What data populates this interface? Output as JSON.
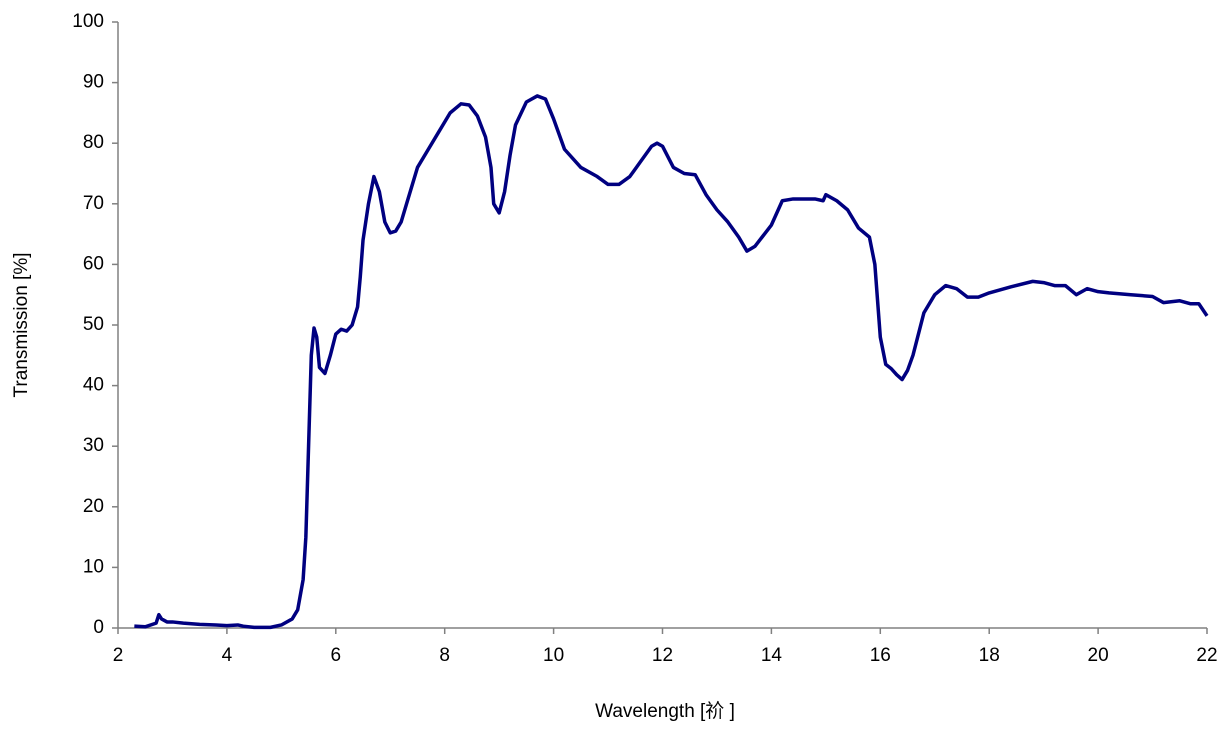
{
  "chart_data": {
    "type": "line",
    "x_label": "Wavelength [祄 ]",
    "y_label": "Transmission [%]",
    "x": [
      2.3,
      2.5,
      2.7,
      2.75,
      2.8,
      2.9,
      3.0,
      3.2,
      3.5,
      3.8,
      4.0,
      4.2,
      4.3,
      4.5,
      4.8,
      5.0,
      5.2,
      5.3,
      5.4,
      5.45,
      5.5,
      5.55,
      5.6,
      5.65,
      5.7,
      5.8,
      5.9,
      6.0,
      6.1,
      6.2,
      6.3,
      6.4,
      6.45,
      6.5,
      6.6,
      6.7,
      6.8,
      6.9,
      7.0,
      7.1,
      7.2,
      7.3,
      7.5,
      7.7,
      7.9,
      8.1,
      8.3,
      8.45,
      8.6,
      8.75,
      8.85,
      8.9,
      9.0,
      9.1,
      9.2,
      9.3,
      9.5,
      9.7,
      9.85,
      10.0,
      10.2,
      10.5,
      10.8,
      11.0,
      11.2,
      11.4,
      11.6,
      11.8,
      11.9,
      12.0,
      12.2,
      12.4,
      12.6,
      12.8,
      13.0,
      13.2,
      13.4,
      13.55,
      13.7,
      14.0,
      14.2,
      14.4,
      14.8,
      14.95,
      15.0,
      15.2,
      15.4,
      15.6,
      15.8,
      15.9,
      16.0,
      16.1,
      16.2,
      16.3,
      16.4,
      16.5,
      16.6,
      16.8,
      17.0,
      17.2,
      17.4,
      17.6,
      17.8,
      18.0,
      18.4,
      18.8,
      19.0,
      19.2,
      19.4,
      19.6,
      19.8,
      20.0,
      20.2,
      20.6,
      21.0,
      21.2,
      21.5,
      21.7,
      21.85,
      22.0
    ],
    "series": [
      {
        "color": "#000080",
        "values": [
          0.3,
          0.2,
          0.8,
          2.2,
          1.5,
          1.0,
          1.0,
          0.8,
          0.6,
          0.5,
          0.4,
          0.5,
          0.3,
          0.1,
          0.1,
          0.5,
          1.5,
          3,
          8,
          15,
          30,
          45,
          49.5,
          48,
          43,
          42,
          45,
          48.5,
          49.3,
          49,
          50,
          53,
          58,
          64,
          70,
          74.5,
          72,
          67,
          65.2,
          65.5,
          67,
          70,
          76,
          79,
          82,
          85,
          86.5,
          86.3,
          84.5,
          81,
          76,
          70,
          68.5,
          72,
          78,
          83,
          86.8,
          87.8,
          87.3,
          84,
          79,
          76,
          74.5,
          73.2,
          73.2,
          74.5,
          77,
          79.5,
          80,
          79.5,
          76,
          75,
          74.8,
          71.5,
          69,
          67,
          64.5,
          62.2,
          63,
          66.5,
          70.5,
          70.8,
          70.8,
          70.5,
          71.5,
          70.5,
          69,
          66,
          64.5,
          60,
          48,
          43.5,
          42.8,
          41.8,
          41,
          42.5,
          45,
          52,
          55,
          56.5,
          56,
          54.6,
          54.6,
          55.3,
          56.3,
          57.2,
          57,
          56.5,
          56.5,
          55,
          56,
          55.5,
          55.3,
          55,
          54.7,
          53.7,
          54,
          53.5,
          53.5,
          51.5
        ]
      }
    ],
    "xlim": [
      2,
      22
    ],
    "xticks": [
      2,
      4,
      6,
      8,
      10,
      12,
      14,
      16,
      18,
      20,
      22
    ],
    "ylim": [
      0,
      100
    ],
    "yticks": [
      0,
      10,
      20,
      30,
      40,
      50,
      60,
      70,
      80,
      90,
      100
    ]
  }
}
